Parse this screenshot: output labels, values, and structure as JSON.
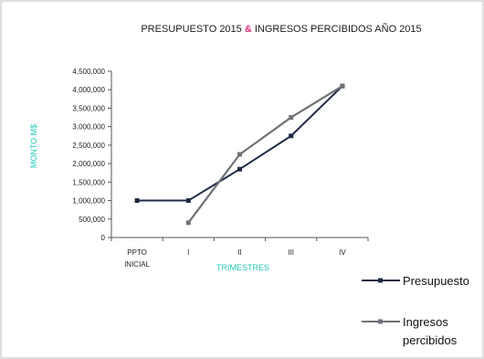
{
  "chart_data": {
    "type": "line",
    "title_part1": "PRESUPUESTO 2015",
    "title_amp": "&",
    "title_part2": "INGRESOS PERCIBIDOS AÑO 2015",
    "xlabel": "TRIMESTRES",
    "ylabel": "MONTO M$",
    "categories": [
      "PPTO INICIAL",
      "I",
      "II",
      "III",
      "IV"
    ],
    "category_lines": [
      [
        "PPTO",
        "INICIAL"
      ],
      [
        "I"
      ],
      [
        "II"
      ],
      [
        "III"
      ],
      [
        "IV"
      ]
    ],
    "ylim": [
      0,
      4500000
    ],
    "yticks": [
      "0",
      "500,000",
      "1,000,000",
      "1,500,000",
      "2,000,000",
      "2,500,000",
      "3,000,000",
      "3,500,000",
      "4,000,000",
      "4,500,000"
    ],
    "series": [
      {
        "name": "Presupuesto",
        "color": "#1f2a44",
        "values": [
          1000000,
          1000000,
          1850000,
          2750000,
          4100000
        ]
      },
      {
        "name": "Ingresos percibidos",
        "legend_lines": [
          "Ingresos",
          "percibidos"
        ],
        "color": "#6f7378",
        "values": [
          null,
          400000,
          2250000,
          3250000,
          4100000
        ]
      }
    ],
    "legend_position": "right",
    "grid": false,
    "axis_label_color": "#1fc7b5"
  }
}
